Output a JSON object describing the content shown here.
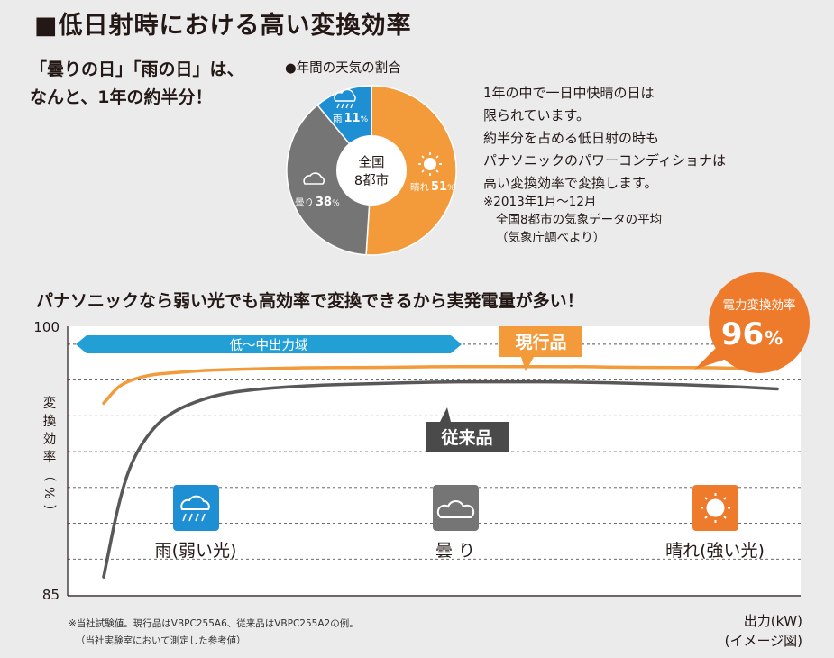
{
  "title": "■低日射時における高い変換効率",
  "intro": [
    "「曇りの日」「雨の日」は、",
    "なんと、1年の約半分！"
  ],
  "pie": {
    "title": "●年間の天気の割合",
    "center": [
      "全国",
      "8都市"
    ],
    "slices": [
      {
        "label": "晴れ",
        "value": 51,
        "pct_text": "51",
        "color": "#f39a3b"
      },
      {
        "label": "曇り",
        "value": 38,
        "pct_text": "38",
        "color": "#767575"
      },
      {
        "label": "雨",
        "value": 11,
        "pct_text": "11",
        "color": "#1e8fd3"
      }
    ],
    "percent_sign": "%"
  },
  "description": [
    "1年の中で一日中快晴の日は",
    "限られています。",
    "約半分を占める低日射の時も",
    "パナソニックのパワーコンディショナは",
    "高い変換効率で変換します。"
  ],
  "note": [
    "※2013年1月〜12月",
    "全国8都市の気象データの平均",
    "（気象庁調べより）"
  ],
  "chart_heading": "パナソニックなら弱い光でも高効率で変換できるから実発電量が多い！",
  "chart_data": {
    "type": "line",
    "ylim": [
      85,
      100
    ],
    "yticks": [
      "100",
      "85"
    ],
    "ylabel": [
      "変",
      "換",
      "効",
      "率",
      "（",
      "%",
      "）"
    ],
    "xlabel": "出力(kW)",
    "xlabel_note": "(イメージ図)",
    "x": [
      0,
      0.02,
      0.04,
      0.07,
      0.1,
      0.15,
      0.2,
      0.3,
      0.4,
      0.5,
      0.6,
      0.7,
      0.8,
      0.9,
      1.0
    ],
    "series": [
      {
        "name": "現行品",
        "color": "#f39a3b",
        "values": [
          95.7,
          96.6,
          97.0,
          97.3,
          97.4,
          97.55,
          97.6,
          97.7,
          97.7,
          97.75,
          97.75,
          97.75,
          97.7,
          97.7,
          97.6
        ]
      },
      {
        "name": "従来品",
        "color": "#595757",
        "values": [
          86.0,
          89.8,
          92.4,
          94.2,
          95.2,
          96.0,
          96.4,
          96.7,
          96.8,
          96.9,
          96.9,
          96.9,
          96.8,
          96.7,
          96.5
        ]
      }
    ],
    "region_label": "低〜中出力域",
    "peak_badge": {
      "title": "電力変換効率",
      "value": "96",
      "unit": "%"
    },
    "conditions": [
      {
        "label": "雨(弱い光)",
        "icon": "rain-cloud-icon",
        "color": "#1e8fd3"
      },
      {
        "label": "曇 り",
        "icon": "cloud-icon",
        "color": "#767575"
      },
      {
        "label": "晴れ(強い光)",
        "icon": "sun-icon",
        "color": "#ee7a2b"
      }
    ],
    "grid": true
  },
  "footnote": [
    "※当社試験値。現行品はVBPC255A6、従来品はVBPC255A2の例。",
    "（当社実験室において測定した参考値）"
  ]
}
